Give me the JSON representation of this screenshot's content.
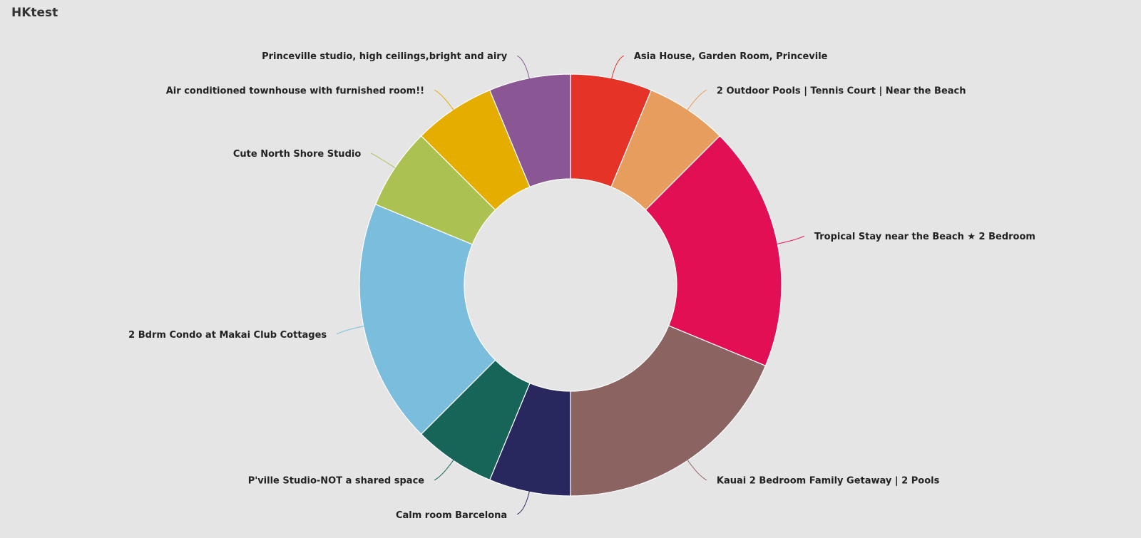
{
  "header": {
    "title": "HKtest"
  },
  "chart_data": {
    "type": "pie",
    "variant": "donut",
    "legend": "none",
    "slices": [
      {
        "label": "Asia House, Garden Room, Princevile",
        "value": 1,
        "color": "#e53328"
      },
      {
        "label": "2 Outdoor Pools | Tennis Court | Near the Beach",
        "value": 1,
        "color": "#e69d5e"
      },
      {
        "label": "Tropical Stay near the Beach ★ 2 Bedroom",
        "value": 3,
        "color": "#e30f55"
      },
      {
        "label": "Kauai 2 Bedroom Family Getaway | 2 Pools",
        "value": 3,
        "color": "#8b6361"
      },
      {
        "label": "Calm room Barcelona",
        "value": 1,
        "color": "#29285e"
      },
      {
        "label": "P'ville Studio-NOT a shared space",
        "value": 1,
        "color": "#176459"
      },
      {
        "label": "2 Bdrm Condo at Makai Club Cottages",
        "value": 3,
        "color": "#7bbddc"
      },
      {
        "label": "Cute North Shore Studio",
        "value": 1,
        "color": "#abc253"
      },
      {
        "label": "Air conditioned townhouse with furnished room!!",
        "value": 1,
        "color": "#e4ad00"
      },
      {
        "label": "Princeville studio, high ceilings,bright and airy",
        "value": 1,
        "color": "#8a5794"
      }
    ]
  }
}
